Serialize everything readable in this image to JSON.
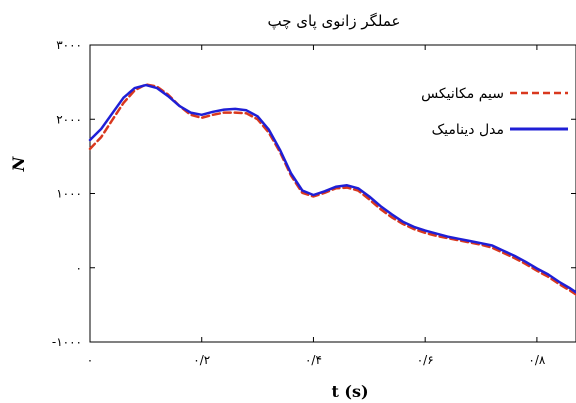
{
  "chart_data": {
    "type": "line",
    "title": "عملگر زانوی پای چپ",
    "xlabel": "t (s)",
    "ylabel": "N",
    "xlim": [
      0,
      0.87
    ],
    "ylim": [
      -1000,
      3000
    ],
    "xticks": [
      {
        "value": 0,
        "label": "۰"
      },
      {
        "value": 0.2,
        "label": "۰/۲"
      },
      {
        "value": 0.4,
        "label": "۰/۴"
      },
      {
        "value": 0.6,
        "label": "۰/۶"
      },
      {
        "value": 0.8,
        "label": "۰/۸"
      }
    ],
    "yticks": [
      {
        "value": -1000,
        "label": "-۱۰۰۰"
      },
      {
        "value": 0,
        "label": "۰"
      },
      {
        "value": 1000,
        "label": "۱۰۰۰"
      },
      {
        "value": 2000,
        "label": "۲۰۰۰"
      },
      {
        "value": 3000,
        "label": "۳۰۰۰"
      }
    ],
    "legend_position": "top-right",
    "grid": false,
    "series": [
      {
        "name": "سیم مکانیکس",
        "color": "#d9381e",
        "style": "dashed",
        "x": [
          0,
          0.02,
          0.04,
          0.06,
          0.08,
          0.1,
          0.12,
          0.14,
          0.16,
          0.18,
          0.2,
          0.22,
          0.24,
          0.26,
          0.28,
          0.3,
          0.32,
          0.34,
          0.36,
          0.38,
          0.4,
          0.42,
          0.44,
          0.46,
          0.48,
          0.5,
          0.52,
          0.54,
          0.56,
          0.58,
          0.6,
          0.62,
          0.64,
          0.66,
          0.68,
          0.7,
          0.72,
          0.74,
          0.76,
          0.78,
          0.8,
          0.82,
          0.84,
          0.86,
          0.87
        ],
        "y": [
          1600,
          1760,
          1990,
          2220,
          2390,
          2470,
          2440,
          2330,
          2180,
          2060,
          2020,
          2060,
          2090,
          2090,
          2080,
          2000,
          1820,
          1560,
          1240,
          1010,
          960,
          1010,
          1070,
          1080,
          1040,
          920,
          790,
          680,
          590,
          520,
          470,
          430,
          400,
          370,
          340,
          310,
          270,
          200,
          130,
          50,
          -40,
          -120,
          -220,
          -310,
          -360
        ]
      },
      {
        "name": "مدل دینامیک",
        "color": "#1f1fd6",
        "style": "solid",
        "x": [
          0,
          0.02,
          0.04,
          0.06,
          0.08,
          0.1,
          0.12,
          0.14,
          0.16,
          0.18,
          0.2,
          0.22,
          0.24,
          0.26,
          0.28,
          0.3,
          0.32,
          0.34,
          0.36,
          0.38,
          0.4,
          0.42,
          0.44,
          0.46,
          0.48,
          0.5,
          0.52,
          0.54,
          0.56,
          0.58,
          0.6,
          0.62,
          0.64,
          0.66,
          0.68,
          0.7,
          0.72,
          0.74,
          0.76,
          0.78,
          0.8,
          0.82,
          0.84,
          0.86,
          0.87
        ],
        "y": [
          1720,
          1870,
          2080,
          2290,
          2420,
          2460,
          2420,
          2310,
          2180,
          2090,
          2060,
          2100,
          2130,
          2140,
          2120,
          2040,
          1860,
          1590,
          1270,
          1040,
          980,
          1030,
          1090,
          1110,
          1070,
          960,
          830,
          720,
          620,
          550,
          500,
          460,
          420,
          390,
          360,
          330,
          300,
          230,
          160,
          80,
          -10,
          -90,
          -190,
          -280,
          -330
        ]
      }
    ]
  }
}
